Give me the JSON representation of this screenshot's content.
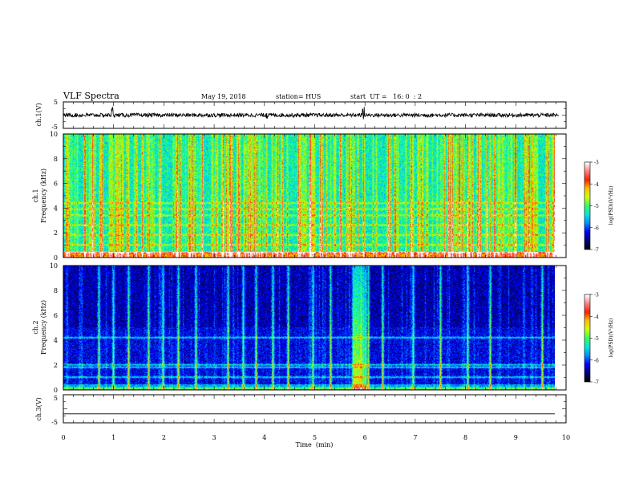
{
  "header": {
    "title": "VLF Spectra",
    "date": "May 19, 2018",
    "station": "station= HUS",
    "start": "start  UT =   16: 0  : 2"
  },
  "chart_data": [
    {
      "type": "line",
      "panel": "channel-1-waveform",
      "ylabel": "ch.1(V)",
      "ylim": [
        -5,
        5
      ],
      "yticks": [
        5,
        -5
      ],
      "xlim": [
        0,
        10
      ],
      "series": [
        {
          "values_description_x": "time (min)",
          "mean": 0,
          "spikes_x": [
            0.98,
            4.05,
            5.97
          ]
        }
      ]
    },
    {
      "type": "heatmap",
      "panel": "channel-1-spectrogram",
      "ylabel": "ch.1\nFrequency  (kHz)",
      "ylim": [
        0,
        10
      ],
      "yticks": [
        "0",
        "2",
        "4",
        "6",
        "8",
        "10"
      ],
      "xlim": [
        0,
        9.85
      ],
      "colorbar": {
        "label": "log(PSD)(V²/Hz)",
        "range": [
          -7,
          -3
        ],
        "ticks": [
          "-3",
          "-4",
          "-5",
          "-6",
          "-7"
        ]
      },
      "background_level": -5.3,
      "horizontal_bands_khz": [
        0.4,
        1.0,
        1.8,
        2.6,
        3.4,
        3.9,
        4.4
      ]
    },
    {
      "type": "heatmap",
      "panel": "channel-2-spectrogram",
      "ylabel": "ch.2\nFrequency  (kHz)",
      "ylim": [
        0,
        10
      ],
      "yticks": [
        "0",
        "2",
        "4",
        "6",
        "8",
        "10"
      ],
      "xlim": [
        0,
        9.85
      ],
      "colorbar": {
        "label": "log(PSD)(V²/Hz)",
        "range": [
          -7,
          -3
        ],
        "ticks": [
          "-3",
          "-4",
          "-5",
          "-6",
          "-7"
        ]
      },
      "background_level": -6.3,
      "horizontal_bands_khz": [
        0.1,
        1.0,
        1.8,
        2.0,
        4.2
      ],
      "vertical_lines_min": [
        0.7,
        1.0,
        1.3,
        1.7,
        2.0,
        2.3,
        2.65,
        3.3,
        3.6,
        3.85,
        4.2,
        4.5,
        5.0,
        5.35,
        5.8,
        5.95,
        6.1,
        6.4,
        7.0,
        7.55,
        8.1,
        8.55,
        9.6
      ]
    },
    {
      "type": "line",
      "panel": "channel-3-waveform",
      "ylabel": "ch.3(V)",
      "ylim": [
        -5,
        5
      ],
      "yticks": [
        5,
        -5
      ],
      "xlim": [
        0,
        10
      ],
      "series": [
        {
          "constant": -1.8
        }
      ]
    }
  ],
  "xaxis": {
    "label": "Time  (min)",
    "ticks": [
      "0",
      "1",
      "2",
      "3",
      "4",
      "5",
      "6",
      "7",
      "8",
      "9",
      "10"
    ],
    "range": [
      0,
      10
    ]
  },
  "colors": {
    "cmap": [
      "#000000",
      "#00007a",
      "#0000ff",
      "#0090ff",
      "#00e8e0",
      "#30ff60",
      "#d0ff00",
      "#ffc000",
      "#ff2000",
      "#ff8080",
      "#ffffff"
    ]
  }
}
